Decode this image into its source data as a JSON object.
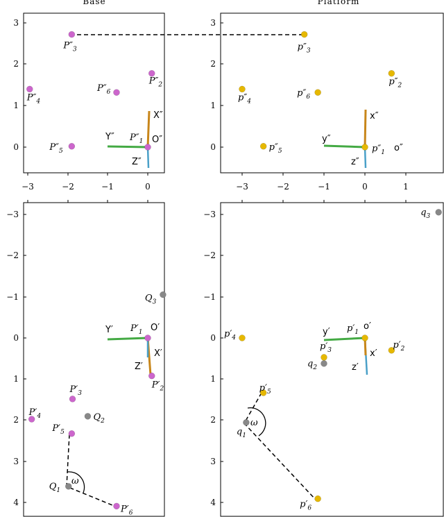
{
  "titles": {
    "base": "Base",
    "platform": "Platform"
  },
  "ticks": {
    "top_y": [
      "3",
      "2",
      "1",
      "0"
    ],
    "x": [
      "−3",
      "−2",
      "−1",
      "0",
      "1"
    ],
    "bottom_y": [
      "−3",
      "−2",
      "−1",
      "0",
      "1",
      "2",
      "3",
      "4"
    ]
  },
  "axes_labels": {
    "base_top": {
      "x": "X″",
      "y": "Y″",
      "z": "Z″",
      "o": "O″"
    },
    "platform_top": {
      "x": "x″",
      "y": "y″",
      "z": "z″",
      "o": "o″"
    },
    "base_bottom": {
      "x": "X′",
      "y": "Y′",
      "z": "Z′",
      "o": "O′"
    },
    "platform_bottom": {
      "x": "x′",
      "y": "y′",
      "z": "z′",
      "o": "o′"
    }
  },
  "points": {
    "base_top": [
      {
        "id": "P3",
        "label": "P″3",
        "x": -1.9,
        "y": 2.72
      },
      {
        "id": "P2",
        "label": "P″2",
        "x": 0.1,
        "y": 1.78
      },
      {
        "id": "P6",
        "label": "P″6",
        "x": -0.78,
        "y": 1.32
      },
      {
        "id": "P4",
        "label": "P″4",
        "x": -2.95,
        "y": 1.4
      },
      {
        "id": "P1",
        "label": "P″1",
        "x": 0.0,
        "y": 0.0
      },
      {
        "id": "P5",
        "label": "P″5",
        "x": -1.9,
        "y": 0.02
      }
    ],
    "platform_top": [
      {
        "id": "p3",
        "label": "p″3",
        "x": -1.48,
        "y": 2.72
      },
      {
        "id": "p2",
        "label": "p″2",
        "x": 0.65,
        "y": 1.78
      },
      {
        "id": "p6",
        "label": "p″6",
        "x": -1.15,
        "y": 1.32
      },
      {
        "id": "p4",
        "label": "p″4",
        "x": -3.0,
        "y": 1.4
      },
      {
        "id": "p1",
        "label": "p″1",
        "x": 0.0,
        "y": 0.0
      },
      {
        "id": "p5",
        "label": "p″5",
        "x": -2.48,
        "y": 0.02
      }
    ],
    "base_bottom": [
      {
        "id": "Q3",
        "label": "Q3",
        "x": 0.38,
        "y": -1.05,
        "kind": "q"
      },
      {
        "id": "P1",
        "label": "P′1",
        "x": 0.0,
        "y": 0.0
      },
      {
        "id": "P2",
        "label": "P′2",
        "x": 0.1,
        "y": 0.92
      },
      {
        "id": "P3",
        "label": "P′3",
        "x": -1.88,
        "y": 1.48
      },
      {
        "id": "Q2",
        "label": "Q2",
        "x": -1.5,
        "y": 1.9,
        "kind": "q"
      },
      {
        "id": "P4",
        "label": "P′4",
        "x": -2.9,
        "y": 1.97
      },
      {
        "id": "P5",
        "label": "P′5",
        "x": -1.9,
        "y": 2.32
      },
      {
        "id": "Q1",
        "label": "Q1",
        "x": -1.98,
        "y": 3.6,
        "kind": "q"
      },
      {
        "id": "P6",
        "label": "P′6",
        "x": -0.78,
        "y": 4.08
      }
    ],
    "platform_bottom": [
      {
        "id": "q3",
        "label": "q3",
        "x": 1.8,
        "y": -3.05,
        "kind": "q"
      },
      {
        "id": "p3",
        "label": "p′3",
        "x": -1.0,
        "y": 0.47
      },
      {
        "id": "p4",
        "label": "p′4",
        "x": -3.0,
        "y": 0.0
      },
      {
        "id": "p1",
        "label": "p′1",
        "x": 0.0,
        "y": 0.0
      },
      {
        "id": "p2",
        "label": "p′2",
        "x": 0.65,
        "y": 0.3
      },
      {
        "id": "q2",
        "label": "q2",
        "x": -1.0,
        "y": 0.62,
        "kind": "q"
      },
      {
        "id": "p5",
        "label": "p′5",
        "x": -2.48,
        "y": 1.33
      },
      {
        "id": "q1",
        "label": "q1",
        "x": -2.9,
        "y": 2.05,
        "kind": "q"
      },
      {
        "id": "p6",
        "label": "p′6",
        "x": -1.15,
        "y": 3.9
      }
    ]
  },
  "angle_label": "ω",
  "colors": {
    "base_point": "#cc66cc",
    "platform_point": "#e6b800",
    "q_point": "#888888",
    "x_axis": "#c8861a",
    "y_axis": "#44aa44",
    "z_axis": "#4aa0c8"
  }
}
